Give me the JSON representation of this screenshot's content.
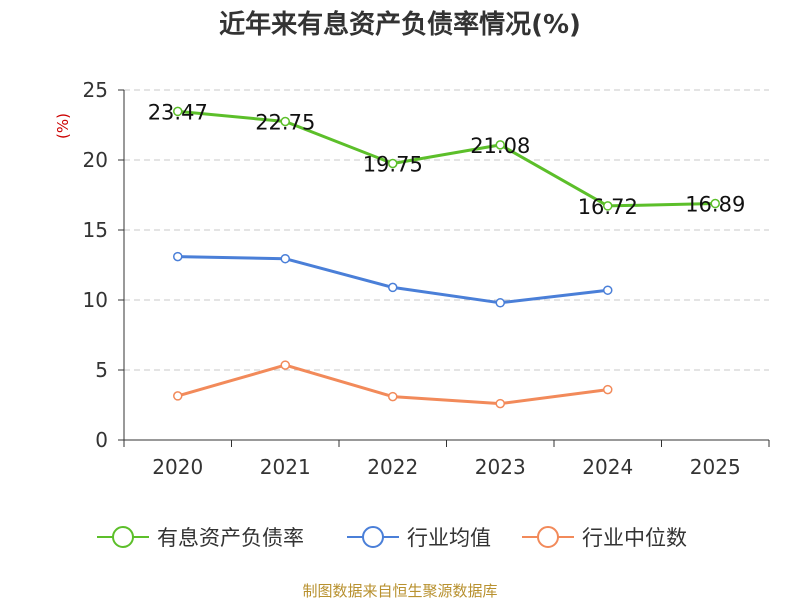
{
  "chart_data": {
    "type": "line",
    "title": "近年来有息资产负债率情况(%)",
    "ylabel": "(%)",
    "xlabel": "",
    "categories": [
      "2020",
      "2021",
      "2022",
      "2023",
      "2024",
      "2025"
    ],
    "ylim": [
      0,
      25
    ],
    "yticks": [
      "0",
      "5",
      "10",
      "15",
      "20",
      "25"
    ],
    "grid": true,
    "legend_position": "bottom",
    "series": [
      {
        "name": "有息资产负债率",
        "color": "#5cbf2a",
        "values": [
          23.47,
          22.75,
          19.75,
          21.08,
          16.72,
          16.89
        ],
        "labels": [
          "23.47",
          "22.75",
          "19.75",
          "21.08",
          "16.72",
          "16.89"
        ]
      },
      {
        "name": "行业均值",
        "color": "#4a7fd8",
        "values": [
          13.1,
          12.95,
          10.9,
          9.8,
          10.7,
          null
        ]
      },
      {
        "name": "行业中位数",
        "color": "#f28a5a",
        "values": [
          3.15,
          5.35,
          3.1,
          2.6,
          3.6,
          null
        ]
      }
    ]
  },
  "source": "制图数据来自恒生聚源数据库"
}
